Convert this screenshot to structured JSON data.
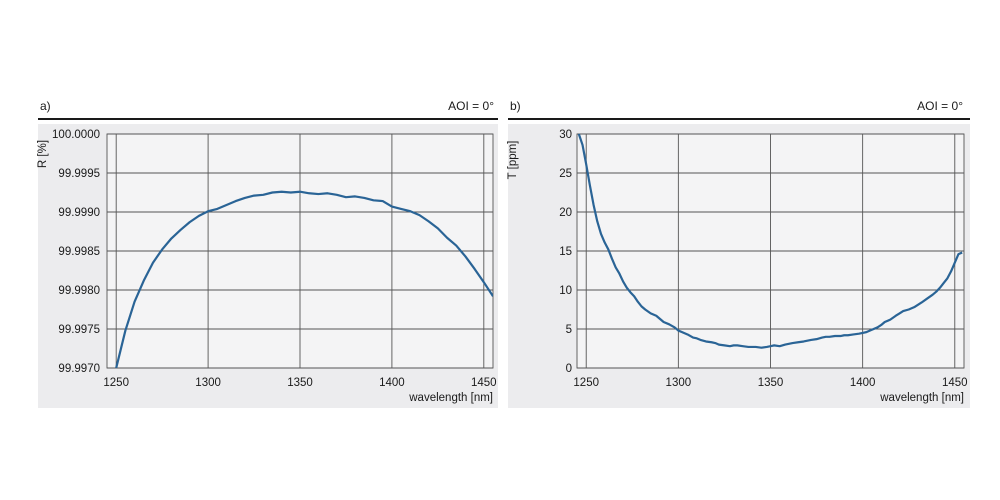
{
  "chart_data": [
    {
      "type": "line",
      "panel_label": "a)",
      "condition": "AOI = 0°",
      "ylabel": "R  [%]",
      "xlabel": "wavelength [nm]",
      "xlim": [
        1245,
        1455
      ],
      "ylim": [
        99.997,
        100.0
      ],
      "x_ticks": [
        1250,
        1300,
        1350,
        1400,
        1450
      ],
      "y_ticks": [
        99.997,
        99.9975,
        99.998,
        99.9985,
        99.999,
        99.9995,
        100.0
      ],
      "y_tick_labels": [
        "99.9970",
        "99.9975",
        "99.9980",
        "99.9985",
        "99.9990",
        "99.9995",
        "100.0000"
      ],
      "grid": true,
      "series": [
        {
          "color": "#2a6496",
          "x": [
            1250,
            1255,
            1260,
            1265,
            1270,
            1275,
            1280,
            1285,
            1290,
            1295,
            1300,
            1305,
            1310,
            1315,
            1320,
            1325,
            1330,
            1335,
            1340,
            1345,
            1350,
            1355,
            1360,
            1365,
            1370,
            1375,
            1380,
            1385,
            1390,
            1395,
            1400,
            1405,
            1410,
            1415,
            1420,
            1425,
            1430,
            1435,
            1440,
            1445,
            1450,
            1455
          ],
          "y": [
            99.997,
            99.99748,
            99.99785,
            99.99812,
            99.99835,
            99.99852,
            99.99866,
            99.99877,
            99.99887,
            99.99895,
            99.99901,
            99.99904,
            99.99909,
            99.99914,
            99.99918,
            99.99921,
            99.99922,
            99.99925,
            99.99926,
            99.99925,
            99.99926,
            99.99924,
            99.99923,
            99.99924,
            99.99922,
            99.99919,
            99.9992,
            99.99918,
            99.99915,
            99.99914,
            99.99907,
            99.99904,
            99.99901,
            99.99896,
            99.99888,
            99.99879,
            99.99867,
            99.99857,
            99.99843,
            99.99827,
            99.9981,
            99.99792
          ]
        }
      ]
    },
    {
      "type": "line",
      "panel_label": "b)",
      "condition": "AOI = 0°",
      "ylabel": "T  [ppm]",
      "xlabel": "wavelength [nm]",
      "xlim": [
        1245,
        1455
      ],
      "ylim": [
        0,
        30
      ],
      "x_ticks": [
        1250,
        1300,
        1350,
        1400,
        1450
      ],
      "y_ticks": [
        0,
        5,
        10,
        15,
        20,
        25,
        30
      ],
      "y_tick_labels": [
        "0",
        "5",
        "10",
        "15",
        "20",
        "25",
        "30"
      ],
      "grid": true,
      "series": [
        {
          "color": "#2a6496",
          "x": [
            1246,
            1248,
            1250,
            1252,
            1254,
            1256,
            1258,
            1260,
            1262,
            1264,
            1266,
            1268,
            1270,
            1272,
            1274,
            1276,
            1278,
            1280,
            1282,
            1285,
            1288,
            1290,
            1292,
            1295,
            1298,
            1300,
            1302,
            1305,
            1308,
            1310,
            1312,
            1315,
            1318,
            1320,
            1322,
            1325,
            1328,
            1330,
            1332,
            1335,
            1338,
            1340,
            1342,
            1345,
            1348,
            1350,
            1352,
            1355,
            1358,
            1360,
            1362,
            1365,
            1368,
            1370,
            1372,
            1375,
            1378,
            1380,
            1382,
            1385,
            1388,
            1390,
            1392,
            1395,
            1398,
            1400,
            1402,
            1405,
            1408,
            1410,
            1412,
            1415,
            1418,
            1420,
            1422,
            1425,
            1428,
            1430,
            1432,
            1435,
            1438,
            1440,
            1442,
            1444,
            1446,
            1448,
            1450,
            1452,
            1454
          ],
          "y": [
            30,
            28.6,
            26.1,
            23.4,
            20.9,
            18.8,
            17.2,
            16.1,
            15.2,
            14.0,
            12.9,
            12.1,
            11.1,
            10.3,
            9.7,
            9.2,
            8.5,
            7.9,
            7.5,
            7.0,
            6.7,
            6.3,
            5.9,
            5.6,
            5.2,
            4.8,
            4.6,
            4.3,
            3.9,
            3.8,
            3.6,
            3.4,
            3.3,
            3.2,
            3.0,
            2.9,
            2.8,
            2.9,
            2.9,
            2.8,
            2.7,
            2.7,
            2.7,
            2.6,
            2.7,
            2.8,
            2.9,
            2.8,
            3.0,
            3.1,
            3.2,
            3.3,
            3.4,
            3.5,
            3.6,
            3.7,
            3.9,
            4.0,
            4.0,
            4.1,
            4.1,
            4.2,
            4.2,
            4.3,
            4.4,
            4.5,
            4.6,
            4.9,
            5.2,
            5.5,
            5.9,
            6.2,
            6.7,
            7.0,
            7.3,
            7.5,
            7.8,
            8.1,
            8.4,
            8.9,
            9.4,
            9.8,
            10.3,
            10.9,
            11.5,
            12.4,
            13.5,
            14.6,
            14.8
          ]
        }
      ]
    }
  ]
}
